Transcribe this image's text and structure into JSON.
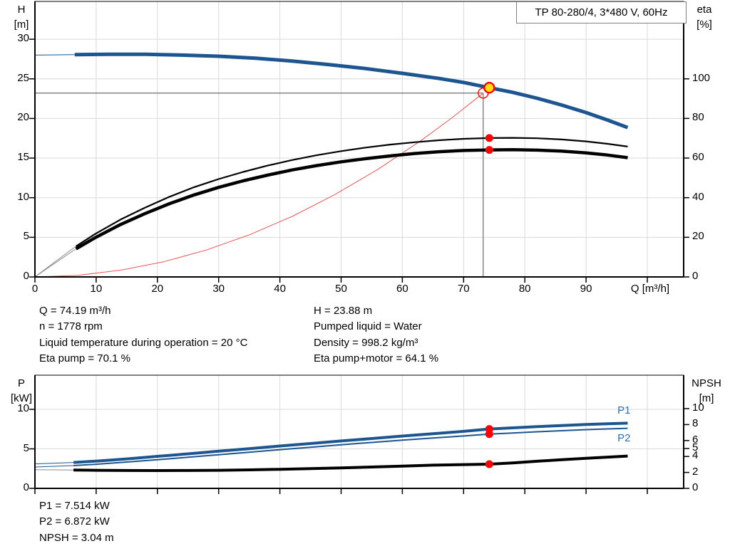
{
  "colors": {
    "curve_blue": "#1c5590",
    "black": "#000000",
    "marker_red": "#ff0000",
    "duty_yellow": "#ffe000",
    "system_red": "#ee5555",
    "crosshair": "#6b6b6b",
    "grid": "#d9d9d9",
    "axis": "#000000",
    "ext_gray": "#8c8c8c",
    "label_blue": "#2e6fb0",
    "title_border": "#7f7f7f"
  },
  "operating_point_info": {
    "left": [
      "Q = 74.19 m³/h",
      "n = 1778 rpm",
      "Liquid temperature during operation = 20 °C",
      "Eta pump = 70.1 %"
    ],
    "right": [
      "H = 23.88 m",
      "Pumped liquid = Water",
      "Density = 998.2 kg/m³",
      "Eta pump+motor = 64.1 %"
    ]
  },
  "power_info": [
    "P1 = 7.514 kW",
    "P2 = 6.872 kW",
    "NPSH = 3.04 m"
  ],
  "chart_data": [
    {
      "type": "line",
      "title": "TP 80-280/4, 3*480 V, 60Hz",
      "xlabel": "Q [m³/h]",
      "ylabel_left": "H [m]",
      "ylabel_right": "eta [%]",
      "ylabel_left_lines": [
        "H",
        "[m]"
      ],
      "ylabel_right_lines": [
        "eta",
        "[%]"
      ],
      "xlim": [
        0,
        105.9
      ],
      "ylim_left": [
        0,
        34.8
      ],
      "ylim_right": [
        0,
        139
      ],
      "x_gridlines": [
        10,
        20,
        30,
        40,
        50,
        60,
        70,
        80,
        90,
        100
      ],
      "y_gridlines": [
        5,
        10,
        15,
        20,
        25,
        30
      ],
      "x_tick_marks": [
        0,
        10,
        20,
        30,
        40,
        50,
        60,
        70,
        80,
        90,
        100
      ],
      "x_tick_labels": [
        "0",
        "10",
        "20",
        "30",
        "40",
        "50",
        "60",
        "70",
        "80",
        "90"
      ],
      "y_ticks_left": [
        "30",
        "25",
        "20",
        "15",
        "10",
        "5",
        "0"
      ],
      "y_ticks_left_values": [
        30,
        25,
        20,
        15,
        10,
        5,
        0
      ],
      "y_ticks_right": [
        "100",
        "80",
        "60",
        "40",
        "20",
        "0"
      ],
      "y_ticks_right_values": [
        100,
        80,
        60,
        40,
        20,
        0
      ],
      "crosshair_point": {
        "q": 73.2,
        "h": 23.2
      },
      "duty_point": {
        "q": 74.19,
        "h": 23.88
      },
      "crosshair_lines": [
        [
          [
            0,
            23.2
          ],
          [
            73.2,
            23.2
          ]
        ],
        [
          [
            73.2,
            23.2
          ],
          [
            73.2,
            0
          ]
        ]
      ],
      "series": [
        {
          "name": "system-curve",
          "axis": "left",
          "color_key": "system_red",
          "width": 1,
          "points": [
            [
              0,
              0
            ],
            [
              7,
              0.21
            ],
            [
              14,
              0.85
            ],
            [
              21,
              1.91
            ],
            [
              28,
              3.4
            ],
            [
              35,
              5.31
            ],
            [
              42,
              7.64
            ],
            [
              49,
              10.4
            ],
            [
              56,
              13.58
            ],
            [
              63,
              17.19
            ],
            [
              68,
              20.03
            ],
            [
              73.2,
              23.2
            ]
          ]
        },
        {
          "name": "eta-pump-motor-curve",
          "axis": "right",
          "color_key": "black",
          "width": 4.5,
          "thin_until": 6.7,
          "ext_color_key": "ext_gray",
          "points": [
            [
              0,
              0
            ],
            [
              3,
              6.4
            ],
            [
              6.7,
              14.2
            ],
            [
              10,
              20.1
            ],
            [
              14,
              26.5
            ],
            [
              18,
              32
            ],
            [
              22,
              37
            ],
            [
              26,
              41.4
            ],
            [
              30,
              45.2
            ],
            [
              34,
              48.5
            ],
            [
              38,
              51.4
            ],
            [
              42,
              54
            ],
            [
              46,
              56.2
            ],
            [
              50,
              58.1
            ],
            [
              54,
              59.7
            ],
            [
              58,
              61.1
            ],
            [
              62,
              62.3
            ],
            [
              66,
              63.2
            ],
            [
              70,
              63.8
            ],
            [
              74.19,
              64.1
            ],
            [
              78,
              64.2
            ],
            [
              82,
              64
            ],
            [
              86,
              63.5
            ],
            [
              90,
              62.6
            ],
            [
              93.5,
              61.5
            ],
            [
              96.8,
              60.2
            ]
          ]
        },
        {
          "name": "eta-pump-curve",
          "axis": "right",
          "color_key": "black",
          "width": 2.2,
          "thin_until": 6.7,
          "ext_color_key": "ext_gray",
          "points": [
            [
              0,
              0
            ],
            [
              3,
              7
            ],
            [
              6.7,
              15.5
            ],
            [
              10,
              22
            ],
            [
              14,
              29
            ],
            [
              18,
              35
            ],
            [
              22,
              40.5
            ],
            [
              26,
              45.3
            ],
            [
              30,
              49.4
            ],
            [
              34,
              53
            ],
            [
              38,
              56.2
            ],
            [
              42,
              59
            ],
            [
              46,
              61.4
            ],
            [
              50,
              63.5
            ],
            [
              54,
              65.3
            ],
            [
              58,
              66.8
            ],
            [
              62,
              68
            ],
            [
              66,
              69
            ],
            [
              70,
              69.7
            ],
            [
              74.19,
              70.1
            ],
            [
              78,
              70.2
            ],
            [
              82,
              70
            ],
            [
              86,
              69.4
            ],
            [
              90,
              68.4
            ],
            [
              93.5,
              67.2
            ],
            [
              96.8,
              65.8
            ]
          ]
        },
        {
          "name": "head-curve",
          "axis": "left",
          "color_key": "curve_blue",
          "width": 5,
          "thin_until": 6.5,
          "ext_color_key": "curve_blue",
          "points": [
            [
              0,
              28.0
            ],
            [
              6.5,
              28.05
            ],
            [
              12,
              28.1
            ],
            [
              18,
              28.1
            ],
            [
              24,
              28.0
            ],
            [
              30,
              27.85
            ],
            [
              36,
              27.6
            ],
            [
              42,
              27.25
            ],
            [
              48,
              26.8
            ],
            [
              54,
              26.3
            ],
            [
              60,
              25.7
            ],
            [
              66,
              25.05
            ],
            [
              70,
              24.55
            ],
            [
              74.19,
              23.88
            ],
            [
              78,
              23.3
            ],
            [
              82,
              22.55
            ],
            [
              86,
              21.7
            ],
            [
              90,
              20.75
            ],
            [
              93.5,
              19.8
            ],
            [
              96.8,
              18.85
            ]
          ]
        }
      ],
      "markers": [
        {
          "name": "requested-duty-point-marker",
          "q": 73.2,
          "axis": "left",
          "v": 23.2,
          "r": 7,
          "fill": "none",
          "stroke": "marker_red",
          "sw": 1.4
        },
        {
          "name": "duty-point-marker",
          "q": 74.19,
          "axis": "left",
          "v": 23.88,
          "r": 7,
          "fill": "duty_yellow",
          "stroke": "marker_red",
          "sw": 2.4,
          "interactable": true
        },
        {
          "name": "eta-pump-point-marker",
          "q": 74.19,
          "axis": "right",
          "v": 70.1,
          "r": 5.5,
          "fill": "marker_red"
        },
        {
          "name": "eta-pump-motor-point-marker",
          "q": 74.19,
          "axis": "right",
          "v": 64.1,
          "r": 5.5,
          "fill": "marker_red"
        }
      ],
      "series_labels": []
    },
    {
      "type": "line",
      "title": "",
      "xlabel": "",
      "ylabel_left": "P [kW]",
      "ylabel_right": "NPSH [m]",
      "ylabel_left_lines": [
        "P",
        "[kW]"
      ],
      "ylabel_right_lines": [
        "NPSH",
        "[m]"
      ],
      "xlim": [
        0,
        105.9
      ],
      "ylim_left": [
        0,
        14.3
      ],
      "ylim_right": [
        0,
        14.2
      ],
      "x_gridlines": [
        10,
        20,
        30,
        40,
        50,
        60,
        70,
        80,
        90,
        100
      ],
      "y_gridlines": [
        5,
        10
      ],
      "x_tick_marks": [
        0,
        10,
        20,
        30,
        40,
        50,
        60,
        70,
        80,
        90,
        100
      ],
      "x_tick_labels": [],
      "y_ticks_left": [
        "10",
        "5",
        "0"
      ],
      "y_ticks_left_values": [
        10,
        5,
        0
      ],
      "y_ticks_right": [
        "10",
        "8",
        "6",
        "5",
        "4",
        "2",
        "0"
      ],
      "y_ticks_right_values": [
        10,
        8,
        6,
        5,
        4,
        2,
        0
      ],
      "crosshair_lines": [],
      "series": [
        {
          "name": "npsh-curve",
          "axis": "right",
          "color_key": "black",
          "width": 4,
          "thin_until": 6.3,
          "ext_color_key": "ext_gray",
          "points": [
            [
              0,
              2.35
            ],
            [
              6.3,
              2.3
            ],
            [
              10,
              2.27
            ],
            [
              15,
              2.24
            ],
            [
              20,
              2.23
            ],
            [
              25,
              2.24
            ],
            [
              30,
              2.27
            ],
            [
              35,
              2.32
            ],
            [
              40,
              2.39
            ],
            [
              45,
              2.47
            ],
            [
              50,
              2.57
            ],
            [
              55,
              2.68
            ],
            [
              60,
              2.79
            ],
            [
              65,
              2.91
            ],
            [
              70,
              2.98
            ],
            [
              74.19,
              3.04
            ],
            [
              78,
              3.2
            ],
            [
              82,
              3.4
            ],
            [
              86,
              3.6
            ],
            [
              90,
              3.78
            ],
            [
              93.5,
              3.92
            ],
            [
              96.8,
              4.05
            ]
          ]
        },
        {
          "name": "p2-curve",
          "axis": "left",
          "color_key": "curve_blue",
          "width": 2,
          "thin_until": 6.3,
          "ext_color_key": "curve_blue",
          "points": [
            [
              0,
              2.7
            ],
            [
              6.3,
              2.88
            ],
            [
              10,
              3.05
            ],
            [
              15,
              3.33
            ],
            [
              20,
              3.63
            ],
            [
              25,
              3.94
            ],
            [
              30,
              4.26
            ],
            [
              35,
              4.58
            ],
            [
              40,
              4.9
            ],
            [
              45,
              5.21
            ],
            [
              50,
              5.52
            ],
            [
              55,
              5.81
            ],
            [
              60,
              6.1
            ],
            [
              65,
              6.37
            ],
            [
              70,
              6.63
            ],
            [
              74.19,
              6.872
            ],
            [
              78,
              7.0
            ],
            [
              82,
              7.16
            ],
            [
              86,
              7.3
            ],
            [
              90,
              7.43
            ],
            [
              93.5,
              7.52
            ],
            [
              96.8,
              7.6
            ]
          ]
        },
        {
          "name": "p1-curve",
          "axis": "left",
          "color_key": "curve_blue",
          "width": 4,
          "thin_until": 6.3,
          "ext_color_key": "curve_blue",
          "points": [
            [
              0,
              3.1
            ],
            [
              6.3,
              3.28
            ],
            [
              10,
              3.45
            ],
            [
              15,
              3.73
            ],
            [
              20,
              4.05
            ],
            [
              25,
              4.37
            ],
            [
              30,
              4.7
            ],
            [
              35,
              5.03
            ],
            [
              40,
              5.36
            ],
            [
              45,
              5.68
            ],
            [
              50,
              6.0
            ],
            [
              55,
              6.31
            ],
            [
              60,
              6.62
            ],
            [
              65,
              6.92
            ],
            [
              70,
              7.22
            ],
            [
              74.19,
              7.514
            ],
            [
              78,
              7.66
            ],
            [
              82,
              7.81
            ],
            [
              86,
              7.95
            ],
            [
              90,
              8.08
            ],
            [
              93.5,
              8.17
            ],
            [
              96.8,
              8.25
            ]
          ]
        }
      ],
      "markers": [
        {
          "name": "p1-point-marker",
          "q": 74.19,
          "axis": "left",
          "v": 7.514,
          "r": 5.5,
          "fill": "marker_red"
        },
        {
          "name": "p2-point-marker",
          "q": 74.19,
          "axis": "left",
          "v": 6.872,
          "r": 5.5,
          "fill": "marker_red"
        },
        {
          "name": "npsh-point-marker",
          "q": 74.19,
          "axis": "right",
          "v": 3.04,
          "r": 5.5,
          "fill": "marker_red"
        }
      ],
      "series_labels": [
        {
          "text": "P1",
          "q": 96.2,
          "v": 9.7
        },
        {
          "text": "P2",
          "q": 96.2,
          "v": 6.25
        }
      ]
    }
  ]
}
